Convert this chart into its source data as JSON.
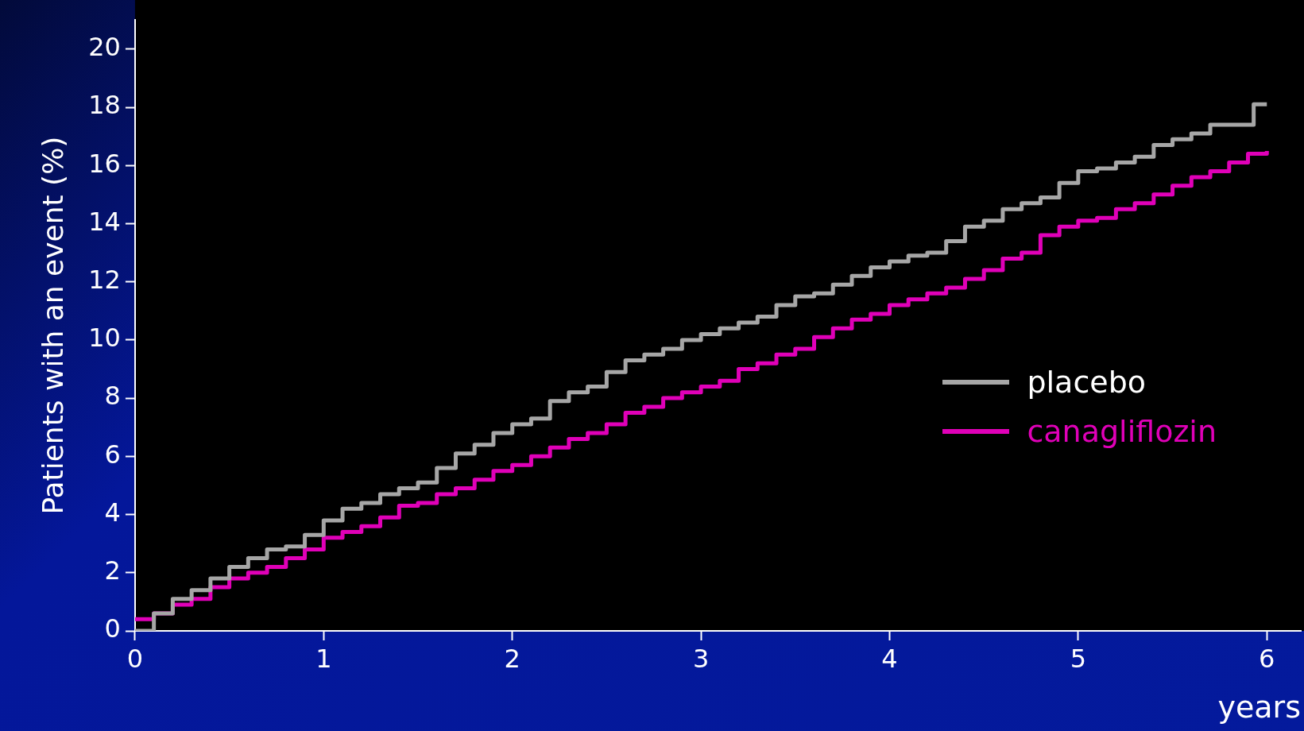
{
  "chart_data": {
    "type": "step",
    "xlabel": "years",
    "ylabel": "Patients with an event (%)",
    "xlim": [
      0,
      6.18
    ],
    "xticks": [
      0,
      1,
      2,
      3,
      4,
      5,
      6
    ],
    "ylim": [
      0,
      21
    ],
    "yticks": [
      0,
      2,
      4,
      6,
      8,
      10,
      12,
      14,
      16,
      18,
      20
    ],
    "grid": false,
    "legend": "right",
    "series": [
      {
        "name": "placebo",
        "color": "#a6a6a6",
        "x": [
          0,
          0.1,
          0.2,
          0.3,
          0.4,
          0.5,
          0.6,
          0.7,
          0.8,
          0.9,
          1.0,
          1.1,
          1.2,
          1.3,
          1.4,
          1.5,
          1.6,
          1.7,
          1.8,
          1.9,
          2.0,
          2.1,
          2.2,
          2.3,
          2.4,
          2.5,
          2.6,
          2.7,
          2.8,
          2.9,
          3.0,
          3.1,
          3.2,
          3.3,
          3.4,
          3.5,
          3.6,
          3.7,
          3.8,
          3.9,
          4.0,
          4.1,
          4.2,
          4.3,
          4.4,
          4.5,
          4.6,
          4.7,
          4.8,
          4.9,
          5.0,
          5.1,
          5.2,
          5.3,
          5.4,
          5.5,
          5.6,
          5.7,
          5.88,
          5.93,
          6.0
        ],
        "values": [
          0,
          0.6,
          1.1,
          1.4,
          1.8,
          2.2,
          2.5,
          2.8,
          2.9,
          3.3,
          3.8,
          4.2,
          4.4,
          4.7,
          4.9,
          5.1,
          5.6,
          6.1,
          6.4,
          6.8,
          7.1,
          7.3,
          7.9,
          8.2,
          8.4,
          8.9,
          9.3,
          9.5,
          9.7,
          10.0,
          10.2,
          10.4,
          10.6,
          10.8,
          11.2,
          11.5,
          11.6,
          11.9,
          12.2,
          12.5,
          12.7,
          12.9,
          13.0,
          13.4,
          13.9,
          14.1,
          14.5,
          14.7,
          14.9,
          15.4,
          15.8,
          15.9,
          16.1,
          16.3,
          16.7,
          16.9,
          17.1,
          17.4,
          17.4,
          18.1,
          18.1
        ]
      },
      {
        "name": "canagliflozin",
        "color": "#e000b8",
        "x": [
          0,
          0.1,
          0.2,
          0.3,
          0.4,
          0.5,
          0.6,
          0.7,
          0.8,
          0.9,
          1.0,
          1.1,
          1.2,
          1.3,
          1.4,
          1.5,
          1.6,
          1.7,
          1.8,
          1.9,
          2.0,
          2.1,
          2.2,
          2.3,
          2.4,
          2.5,
          2.6,
          2.7,
          2.8,
          2.9,
          3.0,
          3.1,
          3.2,
          3.3,
          3.4,
          3.5,
          3.6,
          3.7,
          3.8,
          3.9,
          4.0,
          4.1,
          4.2,
          4.3,
          4.4,
          4.5,
          4.6,
          4.7,
          4.8,
          4.9,
          5.0,
          5.1,
          5.2,
          5.3,
          5.4,
          5.5,
          5.6,
          5.7,
          5.8,
          5.9,
          6.0
        ],
        "values": [
          0.4,
          0.6,
          0.9,
          1.1,
          1.5,
          1.8,
          2.0,
          2.2,
          2.5,
          2.8,
          3.2,
          3.4,
          3.6,
          3.9,
          4.3,
          4.4,
          4.7,
          4.9,
          5.2,
          5.5,
          5.7,
          6.0,
          6.3,
          6.6,
          6.8,
          7.1,
          7.5,
          7.7,
          8.0,
          8.2,
          8.4,
          8.6,
          9.0,
          9.2,
          9.5,
          9.7,
          10.1,
          10.4,
          10.7,
          10.9,
          11.2,
          11.4,
          11.6,
          11.8,
          12.1,
          12.4,
          12.8,
          13.0,
          13.6,
          13.9,
          14.1,
          14.2,
          14.5,
          14.7,
          15.0,
          15.3,
          15.6,
          15.8,
          16.1,
          16.4,
          16.5
        ]
      }
    ]
  }
}
